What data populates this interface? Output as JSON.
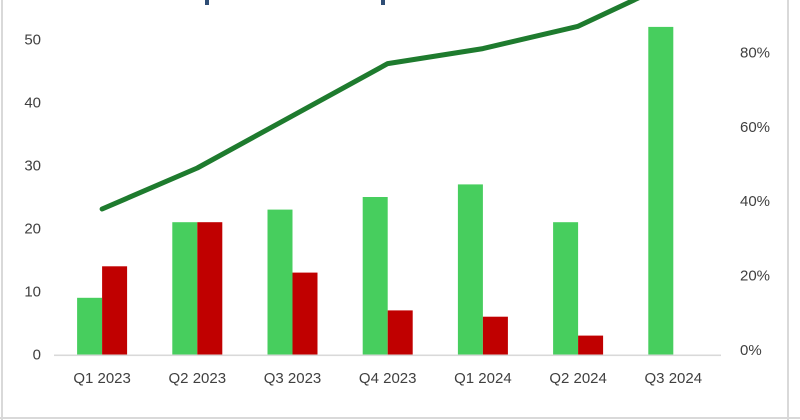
{
  "frame": {
    "background": "#FFFFFF",
    "border_color": "#D9D9D9",
    "clipped_title_fragment_color": "#2F4E75"
  },
  "chart_data": {
    "type": "bar",
    "subtype": "combo-bar-line-dual-axis",
    "title": "",
    "title_clipped_offscreen": true,
    "grid": false,
    "legend_position": "none-visible",
    "categories": [
      "Q1 2023",
      "Q2 2023",
      "Q3 2023",
      "Q4 2023",
      "Q1 2024",
      "Q2 2024",
      "Q3 2024"
    ],
    "series": [
      {
        "name": "green-bars",
        "render": "bar",
        "axis": "left",
        "color": "#47CE5E",
        "values": [
          9,
          21,
          23,
          25,
          27,
          21,
          52
        ]
      },
      {
        "name": "red-bars",
        "render": "bar",
        "axis": "left",
        "color": "#C00000",
        "values": [
          14,
          21,
          13,
          7,
          6,
          3,
          0
        ]
      },
      {
        "name": "trend-line",
        "render": "line",
        "axis": "right",
        "color": "#1E7B2E",
        "values": [
          39,
          50,
          64,
          78,
          82,
          88,
          100
        ]
      }
    ],
    "left_axis": {
      "tick_values": [
        0,
        10,
        20,
        30,
        40,
        50
      ],
      "tick_labels": [
        "0",
        "10",
        "20",
        "30",
        "40",
        "50"
      ],
      "range": [
        0,
        56
      ]
    },
    "right_axis": {
      "tick_values": [
        0,
        20,
        40,
        60,
        80
      ],
      "tick_labels": [
        "0%",
        "20%",
        "40%",
        "60%",
        "80%"
      ],
      "unit": "%"
    },
    "x_axis": {
      "line_color": "#D9D9D9",
      "label_color": "#404040",
      "label_size_px": 15
    }
  }
}
